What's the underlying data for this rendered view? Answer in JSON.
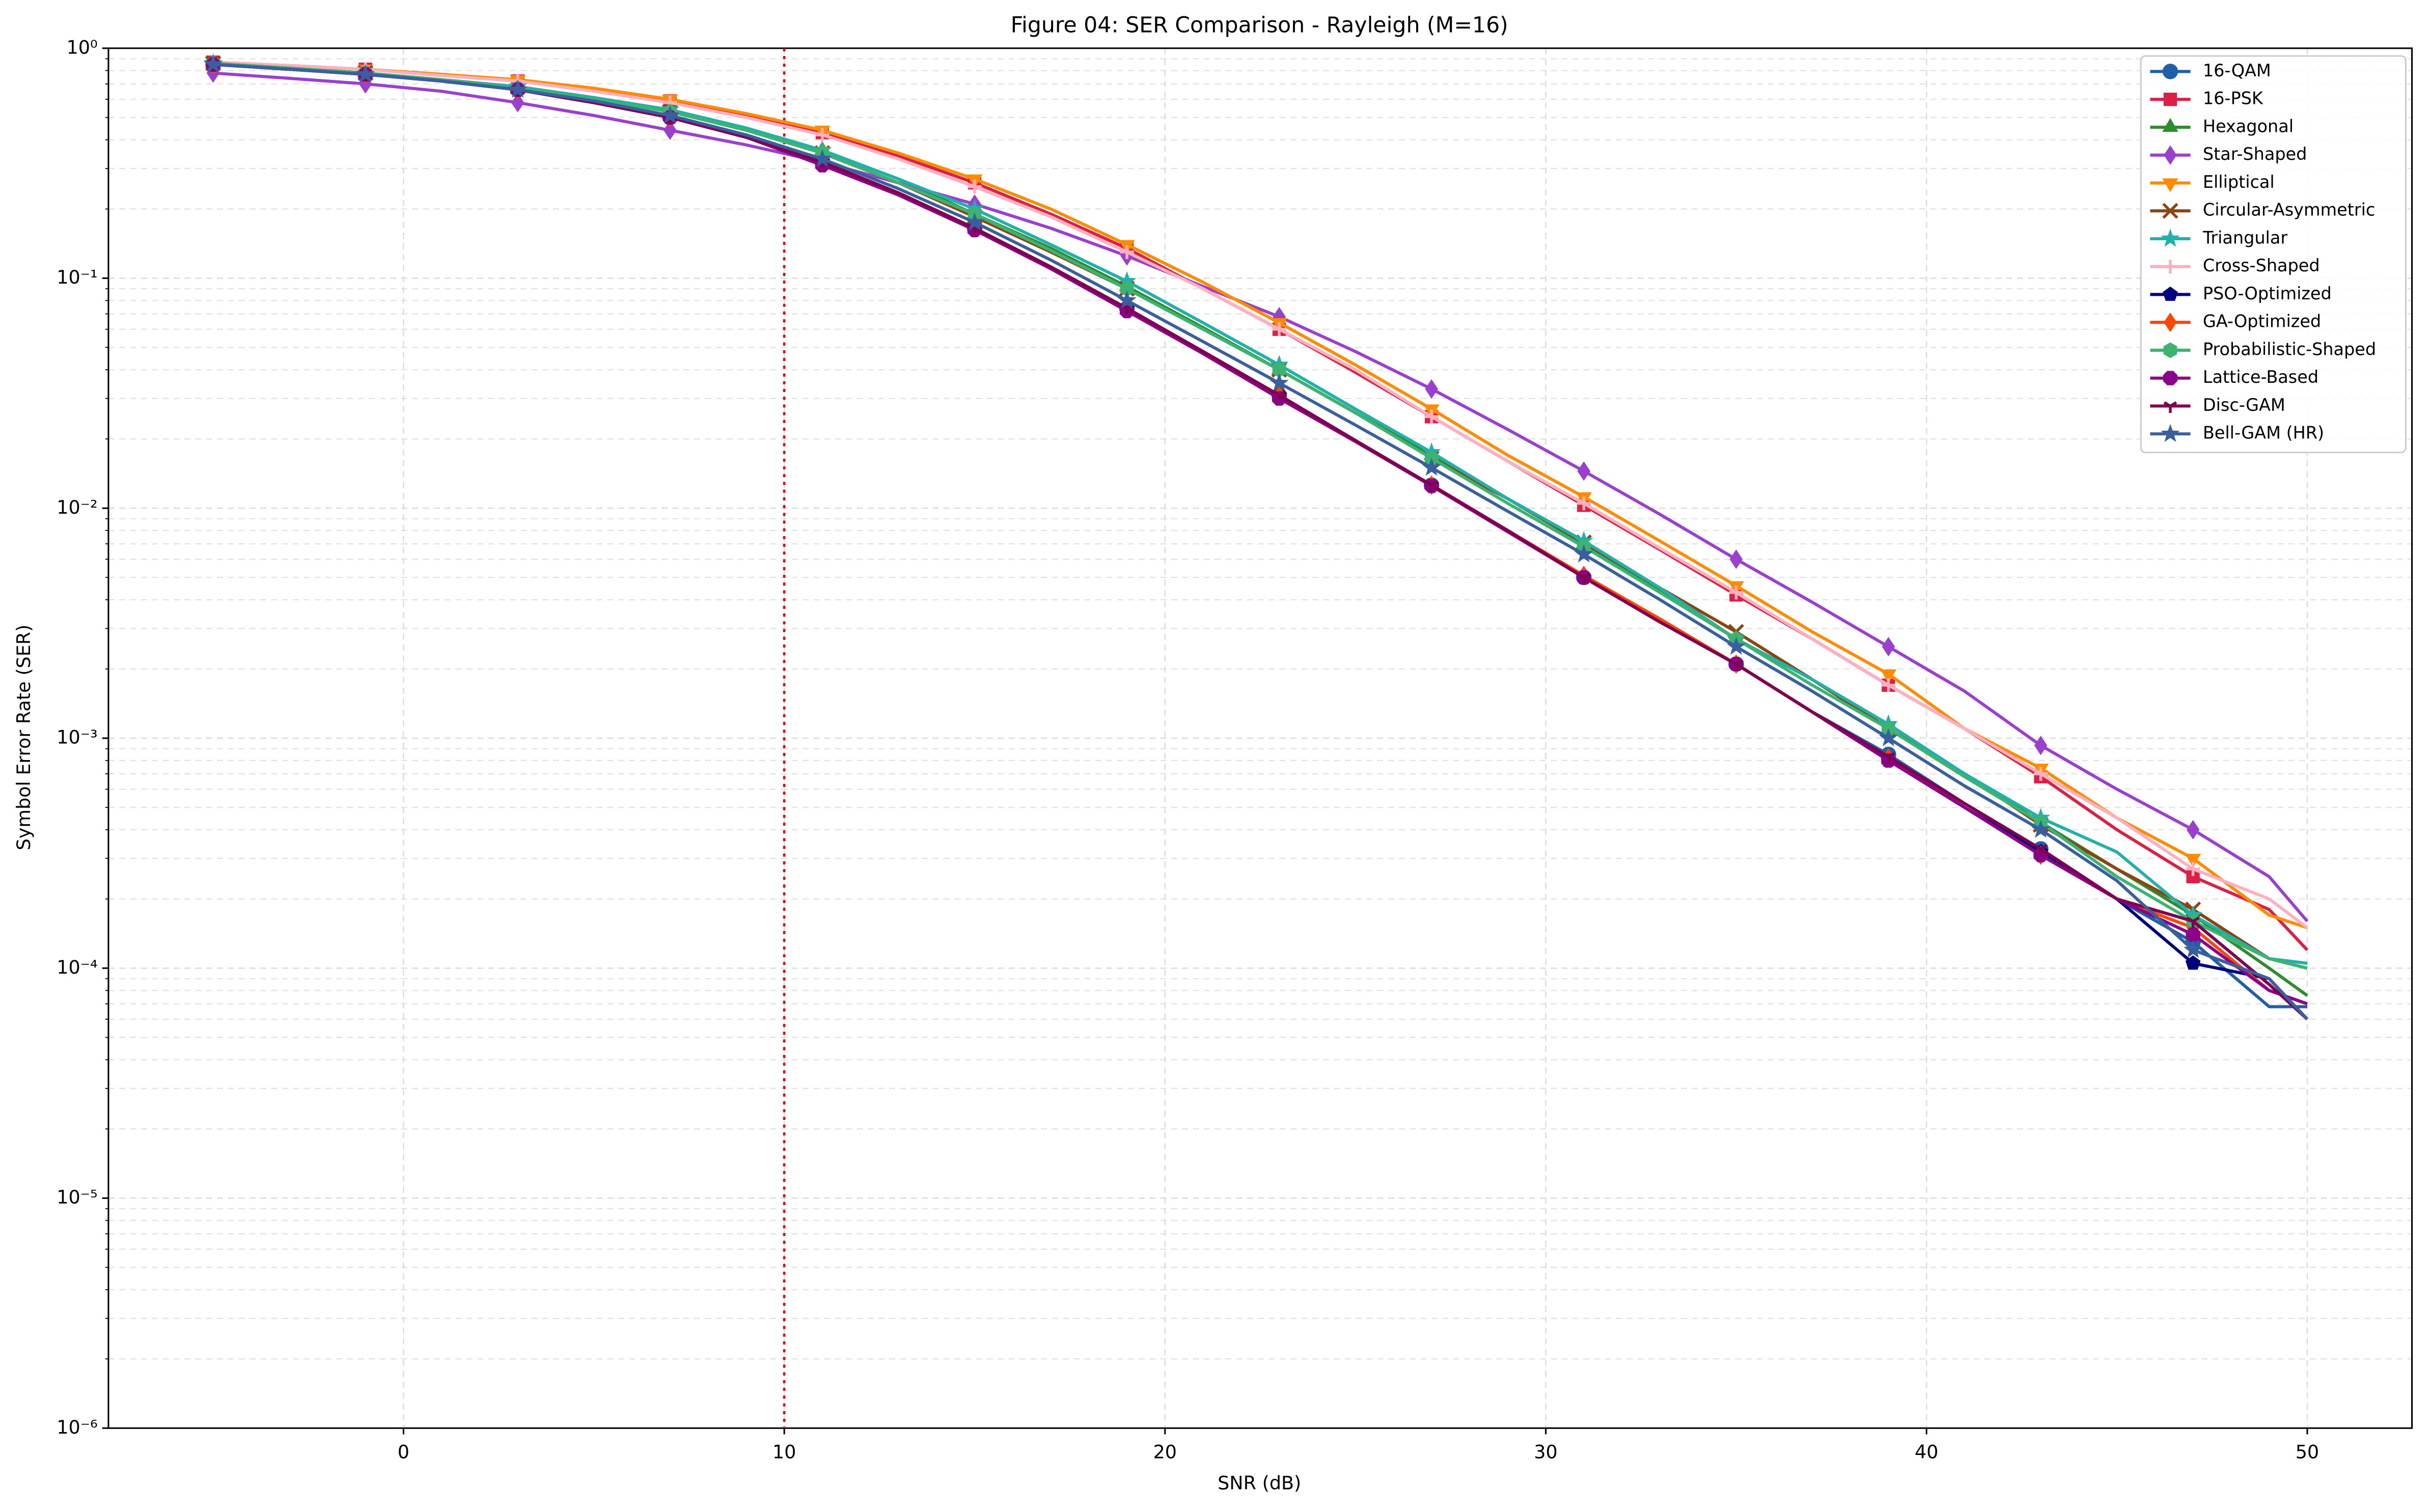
{
  "chart_data": {
    "type": "line",
    "title": "Figure 04: SER Comparison - Rayleigh (M=16)",
    "x_label": "SNR (dB)",
    "y_label": "Symbol Error Rate (SER)",
    "y_scale": "log",
    "grid": true,
    "minor_grid": true,
    "legend": "upper right",
    "xlim": [
      -7.75,
      52.75
    ],
    "xticks": [
      0,
      10,
      20,
      30,
      40,
      50
    ],
    "ylim": [
      1e-06,
      1
    ],
    "yticks": [
      {
        "value": 1e-06,
        "label": "10⁻⁶"
      },
      {
        "value": 1e-05,
        "label": "10⁻⁵"
      },
      {
        "value": 0.0001,
        "label": "10⁻⁴"
      },
      {
        "value": 0.001,
        "label": "10⁻³"
      },
      {
        "value": 0.01,
        "label": "10⁻²"
      },
      {
        "value": 0.1,
        "label": "10⁻¹"
      },
      {
        "value": 1,
        "label": "10⁰"
      }
    ],
    "vline": {
      "x": 10,
      "color": "#e00000"
    },
    "x": [
      -5,
      -3,
      -1,
      1,
      3,
      5,
      7,
      9,
      11,
      13,
      15,
      17,
      19,
      21,
      23,
      25,
      27,
      29,
      31,
      33,
      35,
      37,
      39,
      41,
      43,
      45,
      47,
      49,
      50
    ],
    "series": [
      {
        "name": "16-QAM",
        "color": "#1f5fa8",
        "marker": "circle",
        "values": [
          0.85,
          0.81,
          0.77,
          0.72,
          0.66,
          0.58,
          0.5,
          0.41,
          0.32,
          0.235,
          0.165,
          0.112,
          0.074,
          0.048,
          0.031,
          0.0197,
          0.0126,
          0.008,
          0.005,
          0.0032,
          0.0021,
          0.0013,
          0.00085,
          0.00052,
          0.00033,
          0.0002,
          0.00013,
          6.8e-05,
          6.8e-05
        ]
      },
      {
        "name": "16-PSK",
        "color": "#dc1f45",
        "marker": "square",
        "values": [
          0.87,
          0.84,
          0.81,
          0.77,
          0.72,
          0.66,
          0.59,
          0.51,
          0.43,
          0.34,
          0.26,
          0.19,
          0.135,
          0.09,
          0.06,
          0.039,
          0.025,
          0.016,
          0.0103,
          0.0066,
          0.0042,
          0.0027,
          0.0017,
          0.0011,
          0.00068,
          0.0004,
          0.00025,
          0.00018,
          0.00012
        ]
      },
      {
        "name": "Hexagonal",
        "color": "#2e8b2e",
        "marker": "triangle-up",
        "values": [
          0.86,
          0.82,
          0.78,
          0.73,
          0.68,
          0.61,
          0.54,
          0.45,
          0.36,
          0.27,
          0.19,
          0.135,
          0.092,
          0.061,
          0.04,
          0.026,
          0.017,
          0.011,
          0.007,
          0.0044,
          0.0027,
          0.0018,
          0.0011,
          0.0007,
          0.00043,
          0.00027,
          0.00017,
          0.0001,
          7.6e-05
        ]
      },
      {
        "name": "Star-Shaped",
        "color": "#9b3fcf",
        "marker": "diamond",
        "values": [
          0.78,
          0.74,
          0.7,
          0.65,
          0.58,
          0.51,
          0.44,
          0.38,
          0.32,
          0.26,
          0.21,
          0.165,
          0.125,
          0.092,
          0.068,
          0.048,
          0.033,
          0.022,
          0.0145,
          0.0094,
          0.006,
          0.0039,
          0.0025,
          0.0016,
          0.00093,
          0.0006,
          0.0004,
          0.00025,
          0.00016
        ]
      },
      {
        "name": "Elliptical",
        "color": "#ff8c00",
        "marker": "triangle-down",
        "values": [
          0.87,
          0.84,
          0.81,
          0.77,
          0.73,
          0.67,
          0.6,
          0.52,
          0.44,
          0.35,
          0.27,
          0.2,
          0.14,
          0.096,
          0.064,
          0.042,
          0.027,
          0.017,
          0.0112,
          0.0072,
          0.0046,
          0.0029,
          0.0019,
          0.0011,
          0.00074,
          0.00045,
          0.0003,
          0.00017,
          0.00015
        ]
      },
      {
        "name": "Circular-Asymmetric",
        "color": "#8b4513",
        "marker": "x",
        "values": [
          0.86,
          0.82,
          0.78,
          0.73,
          0.68,
          0.61,
          0.53,
          0.44,
          0.35,
          0.26,
          0.185,
          0.13,
          0.09,
          0.06,
          0.04,
          0.026,
          0.0165,
          0.011,
          0.0071,
          0.0045,
          0.0029,
          0.0018,
          0.0011,
          0.0007,
          0.00042,
          0.00027,
          0.00018,
          0.00011,
          0.0001
        ]
      },
      {
        "name": "Triangular",
        "color": "#20b2aa",
        "marker": "star",
        "values": [
          0.86,
          0.82,
          0.78,
          0.73,
          0.68,
          0.61,
          0.54,
          0.45,
          0.36,
          0.27,
          0.2,
          0.14,
          0.097,
          0.064,
          0.042,
          0.027,
          0.0175,
          0.011,
          0.0072,
          0.0045,
          0.0027,
          0.0018,
          0.00115,
          0.0007,
          0.00045,
          0.00032,
          0.00017,
          0.00011,
          0.000105
        ]
      },
      {
        "name": "Cross-Shaped",
        "color": "#ffb0c0",
        "marker": "plus",
        "values": [
          0.87,
          0.84,
          0.81,
          0.76,
          0.72,
          0.65,
          0.58,
          0.5,
          0.42,
          0.33,
          0.25,
          0.185,
          0.13,
          0.09,
          0.06,
          0.04,
          0.025,
          0.016,
          0.0105,
          0.0067,
          0.0043,
          0.0027,
          0.0017,
          0.0011,
          0.0007,
          0.00045,
          0.00027,
          0.0002,
          0.00015
        ]
      },
      {
        "name": "PSO-Optimized",
        "color": "#000080",
        "marker": "pentagon",
        "values": [
          0.85,
          0.81,
          0.77,
          0.72,
          0.66,
          0.58,
          0.5,
          0.41,
          0.32,
          0.235,
          0.165,
          0.112,
          0.074,
          0.048,
          0.031,
          0.0197,
          0.0126,
          0.008,
          0.005,
          0.0032,
          0.0021,
          0.0013,
          0.0008,
          0.0005,
          0.00032,
          0.0002,
          0.000105,
          9e-05,
          6e-05
        ]
      },
      {
        "name": "GA-Optimized",
        "color": "#ff4500",
        "marker": "diamond",
        "values": [
          0.85,
          0.81,
          0.77,
          0.72,
          0.66,
          0.58,
          0.5,
          0.41,
          0.32,
          0.235,
          0.165,
          0.112,
          0.074,
          0.048,
          0.031,
          0.0197,
          0.0126,
          0.008,
          0.0051,
          0.0033,
          0.0021,
          0.0013,
          0.00082,
          0.0005,
          0.00031,
          0.0002,
          0.00015,
          8e-05,
          7e-05
        ]
      },
      {
        "name": "Probabilistic-Shaped",
        "color": "#3cb371",
        "marker": "hexagon",
        "values": [
          0.86,
          0.82,
          0.78,
          0.73,
          0.67,
          0.6,
          0.53,
          0.44,
          0.35,
          0.26,
          0.19,
          0.132,
          0.09,
          0.06,
          0.04,
          0.026,
          0.0165,
          0.0105,
          0.0068,
          0.0043,
          0.0027,
          0.0017,
          0.0011,
          0.00068,
          0.00043,
          0.00025,
          0.00016,
          0.00011,
          0.0001
        ]
      },
      {
        "name": "Lattice-Based",
        "color": "#8b008b",
        "marker": "octagon",
        "values": [
          0.85,
          0.81,
          0.77,
          0.72,
          0.66,
          0.58,
          0.5,
          0.41,
          0.31,
          0.23,
          0.162,
          0.11,
          0.072,
          0.047,
          0.03,
          0.0195,
          0.0125,
          0.0079,
          0.005,
          0.0032,
          0.0021,
          0.0013,
          0.0008,
          0.0005,
          0.00031,
          0.0002,
          0.00014,
          8e-05,
          7e-05
        ]
      },
      {
        "name": "Disc-GAM",
        "color": "#800050",
        "marker": "tri-down",
        "values": [
          0.85,
          0.81,
          0.77,
          0.72,
          0.66,
          0.58,
          0.5,
          0.41,
          0.32,
          0.235,
          0.165,
          0.112,
          0.074,
          0.048,
          0.031,
          0.0197,
          0.0126,
          0.008,
          0.005,
          0.0032,
          0.0021,
          0.0013,
          0.00083,
          0.00052,
          0.00033,
          0.0002,
          0.00016,
          8.5e-05,
          6e-05
        ]
      },
      {
        "name": "Bell-GAM (HR)",
        "color": "#3a5f9f",
        "marker": "star",
        "values": [
          0.85,
          0.81,
          0.77,
          0.72,
          0.66,
          0.59,
          0.51,
          0.42,
          0.33,
          0.245,
          0.175,
          0.12,
          0.08,
          0.053,
          0.035,
          0.023,
          0.015,
          0.0097,
          0.0063,
          0.004,
          0.0025,
          0.0016,
          0.001,
          0.00062,
          0.0004,
          0.00024,
          0.00012,
          9e-05,
          6e-05
        ]
      }
    ]
  }
}
